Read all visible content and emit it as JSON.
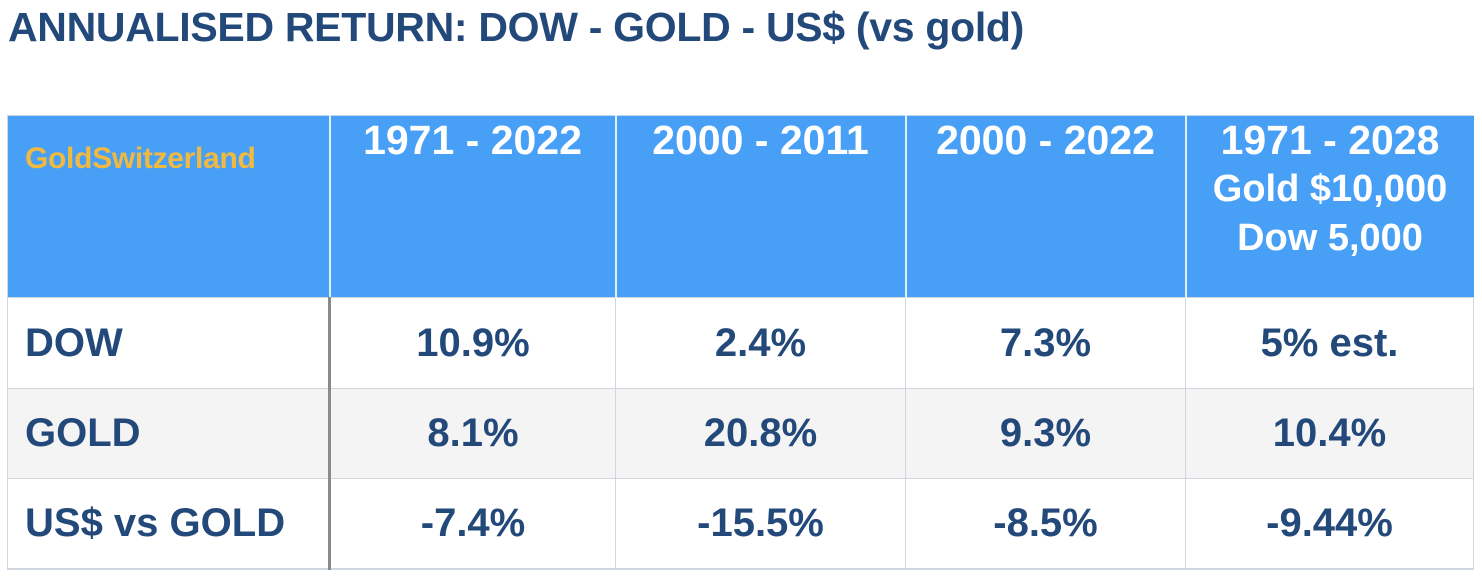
{
  "title": "ANNUALISED RETURN: DOW - GOLD - US$ (vs gold)",
  "colors": {
    "title": "#23497a",
    "header_bg": "#48a0f6",
    "header_text": "#ffffff",
    "brand": "#f0b941",
    "cell_text": "#23497a",
    "alt_row_bg": "#f4f4f4"
  },
  "chart_data": {
    "type": "table",
    "title": "ANNUALISED RETURN: DOW - GOLD - US$ (vs gold)",
    "brand": "GoldSwitzerland",
    "columns": [
      {
        "period": "1971 - 2022",
        "notes": []
      },
      {
        "period": "2000 - 2011",
        "notes": []
      },
      {
        "period": "2000 - 2022",
        "notes": []
      },
      {
        "period": "1971 - 2028",
        "notes": [
          "Gold $10,000",
          "Dow 5,000"
        ]
      }
    ],
    "rows": [
      {
        "label": "DOW",
        "values": [
          "10.9%",
          "2.4%",
          "7.3%",
          "5% est."
        ]
      },
      {
        "label": "GOLD",
        "values": [
          "8.1%",
          "20.8%",
          "9.3%",
          "10.4%"
        ]
      },
      {
        "label": "US$ vs GOLD",
        "values": [
          "-7.4%",
          "-15.5%",
          "-8.5%",
          "-9.44%"
        ]
      }
    ]
  }
}
